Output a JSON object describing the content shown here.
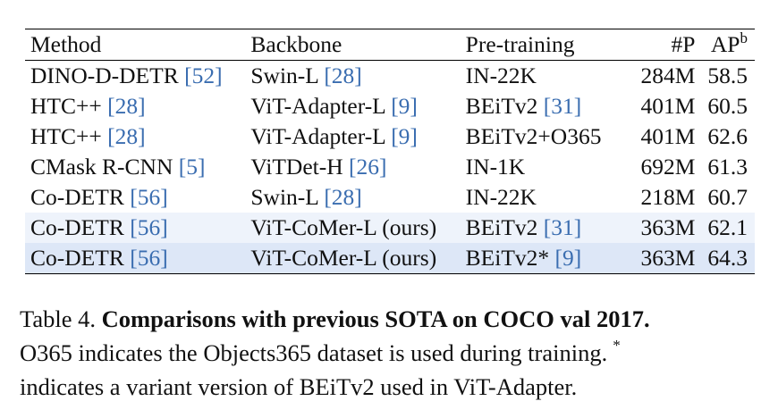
{
  "table": {
    "headers": {
      "method": "Method",
      "backbone": "Backbone",
      "pretraining": "Pre-training",
      "params": "#P",
      "ap": "AP",
      "ap_sup": "b"
    },
    "rows": [
      {
        "method": "DINO-D-DETR ",
        "method_ref": "[52]",
        "backbone": "Swin-L ",
        "backbone_ref": "[28]",
        "pretraining": "IN-22K",
        "pretraining_ref": "",
        "params": "284M",
        "ap": "58.5",
        "highlight": ""
      },
      {
        "method": "HTC++ ",
        "method_ref": "[28]",
        "backbone": "ViT-Adapter-L ",
        "backbone_ref": "[9]",
        "pretraining": "BEiTv2 ",
        "pretraining_ref": "[31]",
        "params": "401M",
        "ap": "60.5",
        "highlight": ""
      },
      {
        "method": "HTC++ ",
        "method_ref": "[28]",
        "backbone": "ViT-Adapter-L ",
        "backbone_ref": "[9]",
        "pretraining": "BEiTv2+O365",
        "pretraining_ref": "",
        "params": "401M",
        "ap": "62.6",
        "highlight": ""
      },
      {
        "method": "CMask R-CNN ",
        "method_ref": "[5]",
        "backbone": "ViTDet-H ",
        "backbone_ref": "[26]",
        "pretraining": "IN-1K",
        "pretraining_ref": "",
        "params": "692M",
        "ap": "61.3",
        "highlight": ""
      },
      {
        "method": "Co-DETR ",
        "method_ref": "[56]",
        "backbone": "Swin-L ",
        "backbone_ref": "[28]",
        "pretraining": "IN-22K",
        "pretraining_ref": "",
        "params": "218M",
        "ap": "60.7",
        "highlight": ""
      },
      {
        "method": "Co-DETR ",
        "method_ref": "[56]",
        "backbone": "ViT-CoMer-L (ours)",
        "backbone_ref": "",
        "pretraining": "BEiTv2 ",
        "pretraining_ref": "[31]",
        "params": "363M",
        "ap": "62.1",
        "highlight": "light"
      },
      {
        "method": "Co-DETR ",
        "method_ref": "[56]",
        "backbone": "ViT-CoMer-L (ours)",
        "backbone_ref": "",
        "pretraining": "BEiTv2* ",
        "pretraining_ref": "[9]",
        "params": "363M",
        "ap": "64.3",
        "highlight": "strong"
      }
    ]
  },
  "caption": {
    "label": "Table 4. ",
    "bold": "Comparisons with previous SOTA on COCO val 2017.",
    "line2": "O365 indicates the Objects365 dataset is used during training.",
    "star": "*",
    "line3": "indicates a variant version of BEiTv2 used in ViT-Adapter."
  },
  "colors": {
    "reference_link": "#3a6db0",
    "highlight_light": "#eef3fb",
    "highlight_strong": "#dde7f7"
  }
}
